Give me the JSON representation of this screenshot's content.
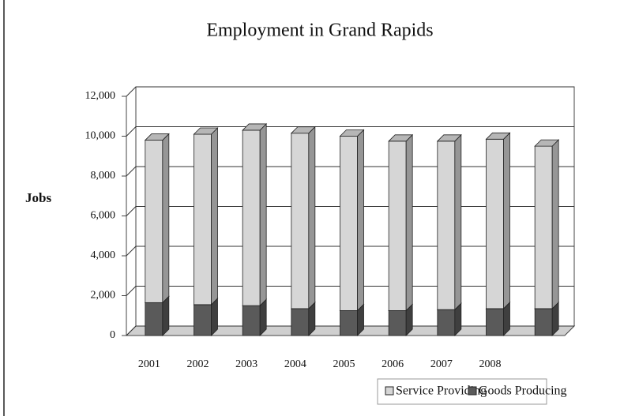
{
  "chart_data": {
    "type": "bar3d_stacked",
    "title": "Employment in Grand Rapids",
    "y_label": "Jobs",
    "categories": [
      "2001",
      "2002",
      "2003",
      "2004",
      "2005",
      "2006",
      "2007",
      "2008",
      null
    ],
    "series": [
      {
        "name": "Goods Producing",
        "color": "#5a5a5a",
        "values": [
          1650,
          1550,
          1500,
          1350,
          1250,
          1250,
          1300,
          1350,
          1350
        ]
      },
      {
        "name": "Service Providing",
        "color": "#d6d6d6",
        "values": [
          8150,
          8550,
          8800,
          8800,
          8750,
          8500,
          8450,
          8500,
          8150
        ]
      }
    ],
    "ylim": [
      0,
      12000
    ],
    "yticks": [
      0,
      {
        "value": 2000,
        "label": "2,000"
      },
      {
        "value": 4000,
        "label": "4,000"
      },
      {
        "value": 6000,
        "label": "6,000"
      },
      {
        "value": 8000,
        "label": "8,000"
      },
      {
        "value": 10000,
        "label": "10,000"
      },
      {
        "value": 12000,
        "label": "12,000"
      }
    ],
    "grid": true
  }
}
